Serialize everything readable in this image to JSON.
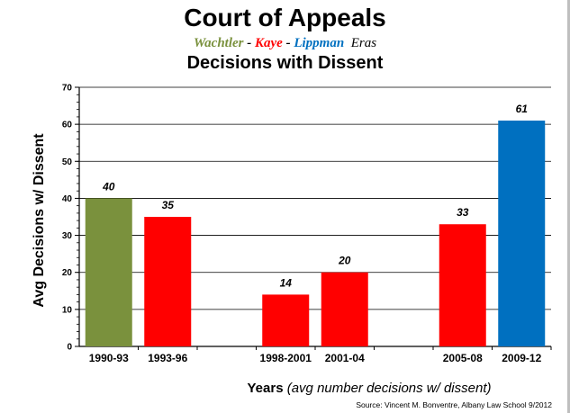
{
  "header": {
    "title": "Court of Appeals",
    "eras": [
      {
        "name": "Wachtler",
        "color": "#7a913d"
      },
      {
        "name": "Kaye",
        "color": "#ff0000"
      },
      {
        "name": "Lippman",
        "color": "#0070c0"
      }
    ],
    "separator": " - ",
    "eras_suffix": "Eras",
    "subtitle": "Decisions with Dissent"
  },
  "footer": {
    "xlabel_main": "Years",
    "xlabel_note": "(avg number decisions w/ dissent)",
    "source": "Source: Vincent M. Bonventre, Albany Law School  9/2012"
  },
  "chart_data": {
    "type": "bar",
    "title": "Decisions with Dissent",
    "xlabel": "Years (avg number decisions w/ dissent)",
    "ylabel": "Avg Decisions w/ Dissent",
    "ylim": [
      0,
      70
    ],
    "yticks": [
      0,
      10,
      20,
      30,
      40,
      50,
      60,
      70
    ],
    "grid": true,
    "categories": [
      "1990-93",
      "1993-96",
      "",
      "1998-2001",
      "2001-04",
      "",
      "2005-08",
      "2009-12"
    ],
    "values": [
      40,
      35,
      null,
      14,
      20,
      null,
      33,
      61
    ],
    "bar_colors": [
      "#7a913d",
      "#ff0000",
      null,
      "#ff0000",
      "#ff0000",
      null,
      "#ff0000",
      "#0070c0"
    ],
    "data_labels": [
      "40",
      "35",
      "",
      "14",
      "20",
      "",
      "33",
      "61"
    ]
  }
}
